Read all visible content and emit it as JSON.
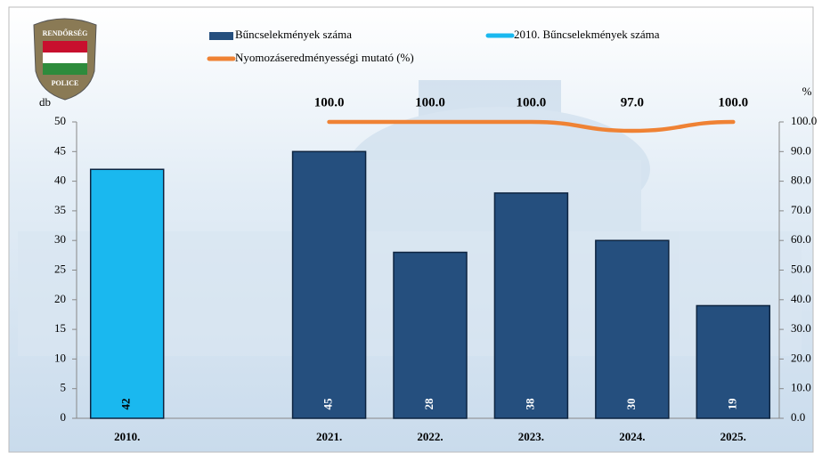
{
  "chart_data": {
    "type": "bar",
    "logo": {
      "top": "RENDŐRSÉG",
      "bottom": "POLICE"
    },
    "y_label": "db",
    "y2_label": "%",
    "categories": [
      "2010.",
      null,
      "2021.",
      "2022.",
      "2023.",
      "2024.",
      "2025."
    ],
    "series": [
      {
        "name": "Bűncselekmények száma",
        "type": "bar",
        "color": "#254f7e",
        "values": [
          null,
          null,
          45,
          28,
          38,
          30,
          19
        ]
      },
      {
        "name": "2010. Bűncselekmények száma",
        "type": "bar",
        "color": "#1ab8ef",
        "values": [
          42,
          null,
          null,
          null,
          null,
          null,
          null
        ]
      },
      {
        "name": "Nyomozáseredményességi mutató (%)",
        "type": "line",
        "axis": "y2",
        "color": "#ef8234",
        "values": [
          null,
          null,
          100,
          100,
          100,
          97,
          100
        ],
        "value_labels": [
          null,
          null,
          "100.0",
          "100.0",
          "100.0",
          "97.0",
          "100.0"
        ]
      }
    ],
    "ylim": [
      0,
      50
    ],
    "yticks": [
      0,
      5,
      10,
      15,
      20,
      25,
      30,
      35,
      40,
      45,
      50
    ],
    "y2lim": [
      0,
      100
    ],
    "y2ticks": [
      {
        "value": 0,
        "label": "0.0"
      },
      {
        "value": 10,
        "label": "10.0"
      },
      {
        "value": 20,
        "label": "20.0"
      },
      {
        "value": 30,
        "label": "30.0"
      },
      {
        "value": 40,
        "label": "40.0"
      },
      {
        "value": 50,
        "label": "50.0"
      },
      {
        "value": 60,
        "label": "60.0"
      },
      {
        "value": 70,
        "label": "70.0"
      },
      {
        "value": 80,
        "label": "80.0"
      },
      {
        "value": 90,
        "label": "90.0"
      },
      {
        "value": 100,
        "label": "100.0"
      }
    ],
    "grid": false
  }
}
